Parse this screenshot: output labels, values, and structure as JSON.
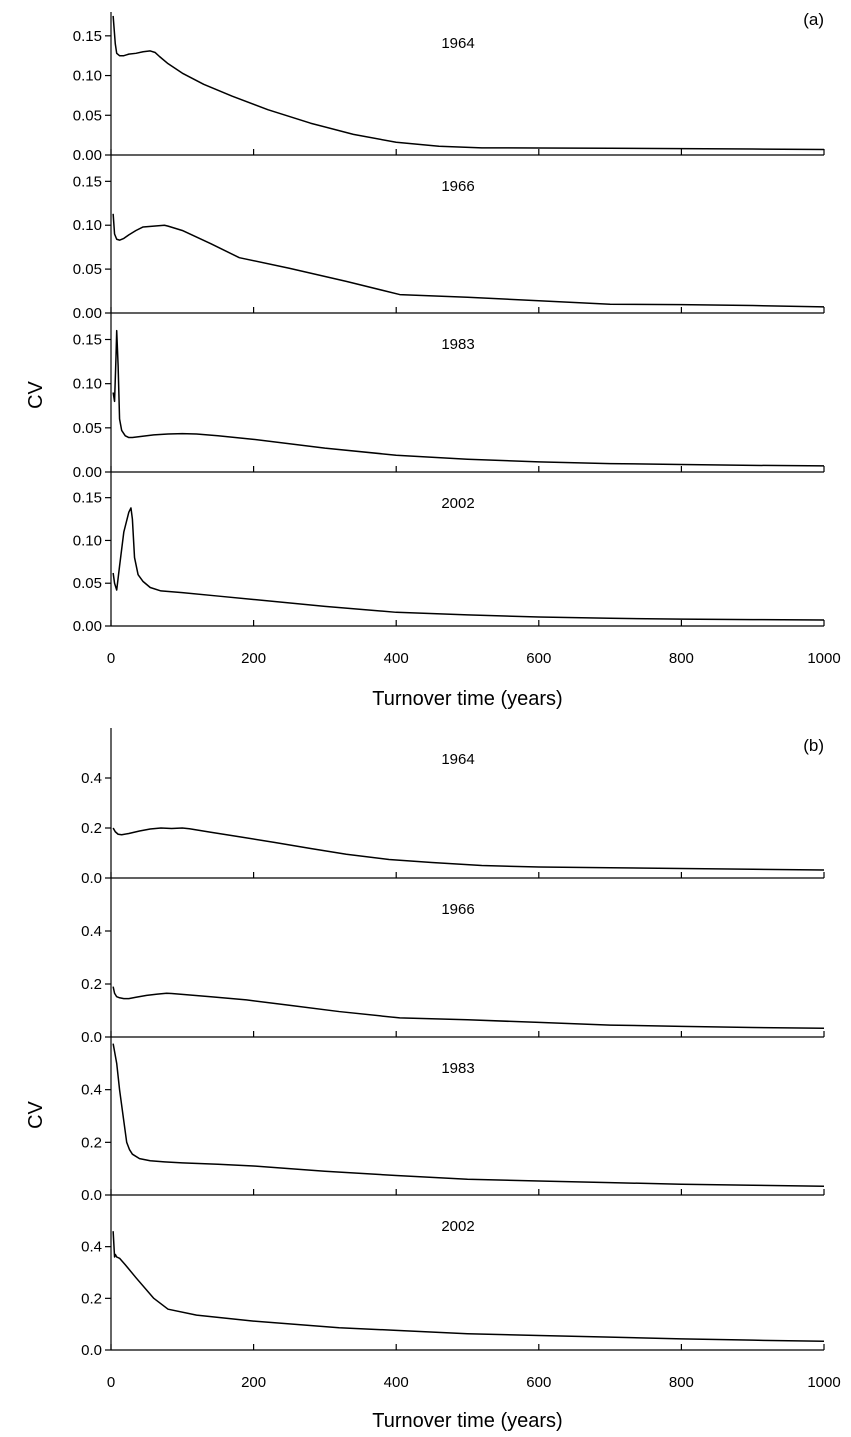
{
  "chart_data": [
    {
      "type": "line",
      "panel_label": "(a)",
      "xlabel": "Turnover time (years)",
      "ylabel": "CV",
      "xlim": [
        0,
        1000
      ],
      "ylim": [
        0,
        0.18
      ],
      "xticks": [
        0,
        200,
        400,
        600,
        800,
        1000
      ],
      "xtick_labels": [
        "0",
        "200",
        "400",
        "600",
        "800",
        "1000"
      ],
      "yticks": [
        0,
        0.05,
        0.1,
        0.15
      ],
      "ytick_labels": [
        "0.00",
        "0.05",
        "0.10",
        "0.15"
      ],
      "grid": false,
      "subplots": [
        {
          "label": "1964",
          "x": [
            3,
            6,
            8,
            12,
            18,
            25,
            35,
            45,
            55,
            62,
            68,
            80,
            100,
            130,
            170,
            220,
            280,
            340,
            400,
            460,
            520,
            600,
            700,
            800,
            900,
            1000
          ],
          "y": [
            0.175,
            0.14,
            0.128,
            0.125,
            0.125,
            0.127,
            0.128,
            0.13,
            0.131,
            0.129,
            0.124,
            0.115,
            0.103,
            0.089,
            0.074,
            0.057,
            0.04,
            0.026,
            0.016,
            0.011,
            0.009,
            0.0088,
            0.0085,
            0.008,
            0.0075,
            0.007
          ]
        },
        {
          "label": "1966",
          "x": [
            3,
            5,
            8,
            12,
            18,
            25,
            35,
            45,
            60,
            75,
            80,
            100,
            140,
            180,
            250,
            330,
            405,
            500,
            600,
            700,
            800,
            900,
            1000
          ],
          "y": [
            0.113,
            0.09,
            0.084,
            0.083,
            0.085,
            0.089,
            0.094,
            0.098,
            0.099,
            0.1,
            0.099,
            0.094,
            0.079,
            0.063,
            0.051,
            0.036,
            0.021,
            0.018,
            0.014,
            0.01,
            0.0095,
            0.0085,
            0.007
          ]
        },
        {
          "label": "1983",
          "x": [
            3,
            5,
            7,
            8,
            10,
            12,
            15,
            20,
            25,
            30,
            40,
            60,
            80,
            100,
            120,
            150,
            200,
            300,
            400,
            500,
            600,
            700,
            800,
            900,
            1000
          ],
          "y": [
            0.09,
            0.08,
            0.13,
            0.16,
            0.12,
            0.06,
            0.047,
            0.041,
            0.039,
            0.039,
            0.04,
            0.042,
            0.043,
            0.0435,
            0.043,
            0.041,
            0.037,
            0.027,
            0.019,
            0.0145,
            0.0115,
            0.0095,
            0.0085,
            0.0075,
            0.007
          ]
        },
        {
          "label": "2002",
          "x": [
            3,
            5,
            8,
            12,
            18,
            25,
            28,
            30,
            33,
            38,
            45,
            55,
            70,
            100,
            150,
            200,
            300,
            400,
            500,
            600,
            700,
            800,
            900,
            1000
          ],
          "y": [
            0.062,
            0.05,
            0.042,
            0.07,
            0.11,
            0.133,
            0.138,
            0.125,
            0.08,
            0.06,
            0.052,
            0.045,
            0.041,
            0.039,
            0.035,
            0.031,
            0.023,
            0.016,
            0.013,
            0.0105,
            0.009,
            0.008,
            0.0075,
            0.007
          ]
        }
      ]
    },
    {
      "type": "line",
      "panel_label": "(b)",
      "xlabel": "Turnover time (years)",
      "ylabel": "CV",
      "xlim": [
        0,
        1000
      ],
      "ylim": [
        0,
        0.6
      ],
      "xticks": [
        0,
        200,
        400,
        600,
        800,
        1000
      ],
      "xtick_labels": [
        "0",
        "200",
        "400",
        "600",
        "800",
        "1000"
      ],
      "yticks": [
        0,
        0.2,
        0.4
      ],
      "ytick_labels": [
        "0.0",
        "0.2",
        "0.4"
      ],
      "grid": false,
      "subplots": [
        {
          "label": "1964",
          "x": [
            3,
            6,
            10,
            15,
            25,
            40,
            55,
            70,
            85,
            100,
            110,
            140,
            180,
            230,
            280,
            330,
            390,
            450,
            520,
            600,
            700,
            800,
            900,
            1000
          ],
          "y": [
            0.2,
            0.185,
            0.175,
            0.173,
            0.178,
            0.188,
            0.196,
            0.2,
            0.198,
            0.2,
            0.197,
            0.183,
            0.165,
            0.142,
            0.118,
            0.095,
            0.074,
            0.062,
            0.05,
            0.044,
            0.041,
            0.038,
            0.035,
            0.032
          ]
        },
        {
          "label": "1966",
          "x": [
            3,
            5,
            8,
            12,
            18,
            25,
            35,
            50,
            65,
            78,
            85,
            100,
            140,
            190,
            250,
            320,
            405,
            500,
            600,
            700,
            800,
            900,
            1000
          ],
          "y": [
            0.19,
            0.165,
            0.152,
            0.148,
            0.145,
            0.145,
            0.15,
            0.157,
            0.162,
            0.165,
            0.164,
            0.161,
            0.152,
            0.14,
            0.12,
            0.096,
            0.072,
            0.065,
            0.055,
            0.045,
            0.04,
            0.036,
            0.033
          ]
        },
        {
          "label": "1983",
          "x": [
            3,
            8,
            12,
            18,
            22,
            26,
            30,
            40,
            55,
            75,
            100,
            150,
            200,
            250,
            300,
            400,
            500,
            600,
            700,
            800,
            900,
            1000
          ],
          "y": [
            0.575,
            0.5,
            0.4,
            0.28,
            0.2,
            0.172,
            0.155,
            0.138,
            0.13,
            0.126,
            0.122,
            0.117,
            0.11,
            0.1,
            0.09,
            0.074,
            0.06,
            0.053,
            0.047,
            0.041,
            0.037,
            0.033
          ]
        },
        {
          "label": "2002",
          "x": [
            3,
            5,
            6,
            8,
            12,
            20,
            35,
            60,
            80,
            120,
            200,
            320,
            400,
            500,
            600,
            700,
            800,
            900,
            1000
          ],
          "y": [
            0.46,
            0.36,
            0.37,
            0.36,
            0.355,
            0.33,
            0.28,
            0.2,
            0.158,
            0.135,
            0.112,
            0.086,
            0.076,
            0.063,
            0.056,
            0.05,
            0.043,
            0.038,
            0.034
          ]
        }
      ]
    }
  ]
}
